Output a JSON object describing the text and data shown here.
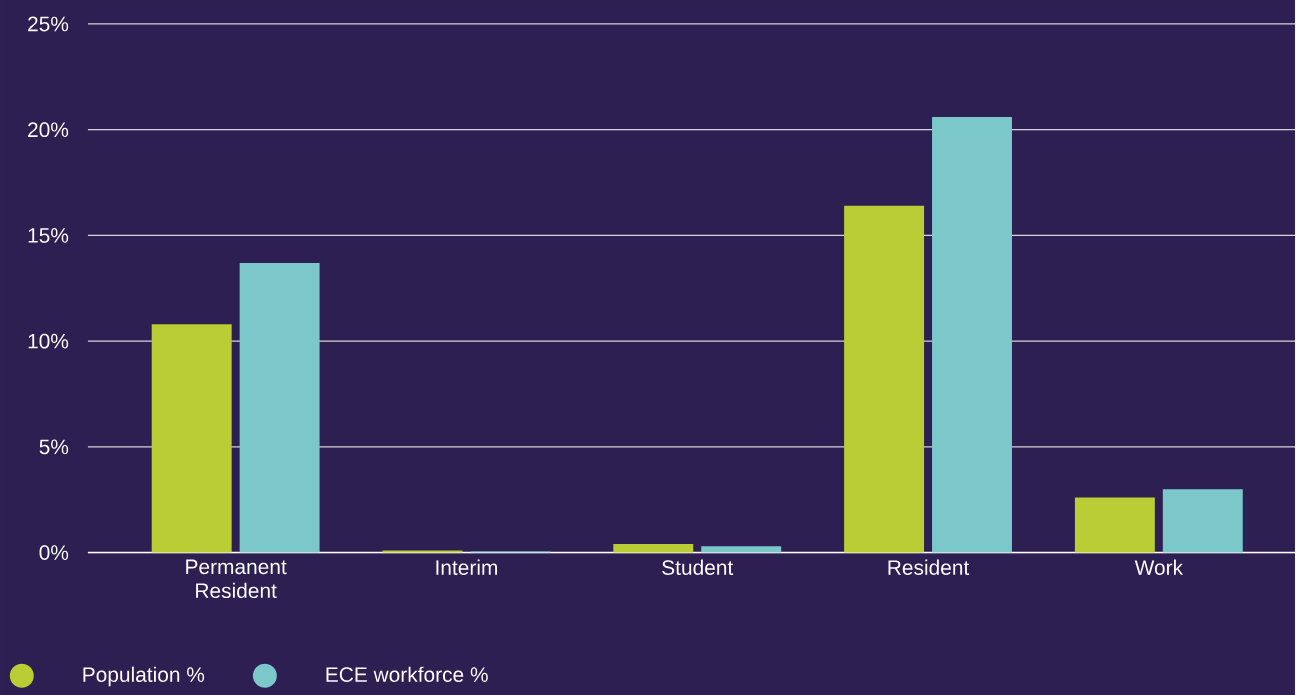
{
  "chart_data": {
    "type": "bar",
    "categories": [
      "Permanent Resident",
      "Interim",
      "Student",
      "Resident",
      "Work"
    ],
    "series": [
      {
        "name": "Population %",
        "color": "#bacd34",
        "values": [
          10.8,
          0.1,
          0.4,
          16.4,
          2.6
        ]
      },
      {
        "name": "ECE workforce %",
        "color": "#7cc7ca",
        "values": [
          13.7,
          0.05,
          0.3,
          20.6,
          3.0
        ]
      }
    ],
    "ylim": [
      0,
      25
    ],
    "yticks": [
      {
        "value": 0,
        "label": "0%"
      },
      {
        "value": 5,
        "label": "5%"
      },
      {
        "value": 10,
        "label": "10%"
      },
      {
        "value": 15,
        "label": "15%"
      },
      {
        "value": 20,
        "label": "20%"
      },
      {
        "value": 25,
        "label": "25%"
      }
    ],
    "grid": "y",
    "legend": "bottom left"
  }
}
